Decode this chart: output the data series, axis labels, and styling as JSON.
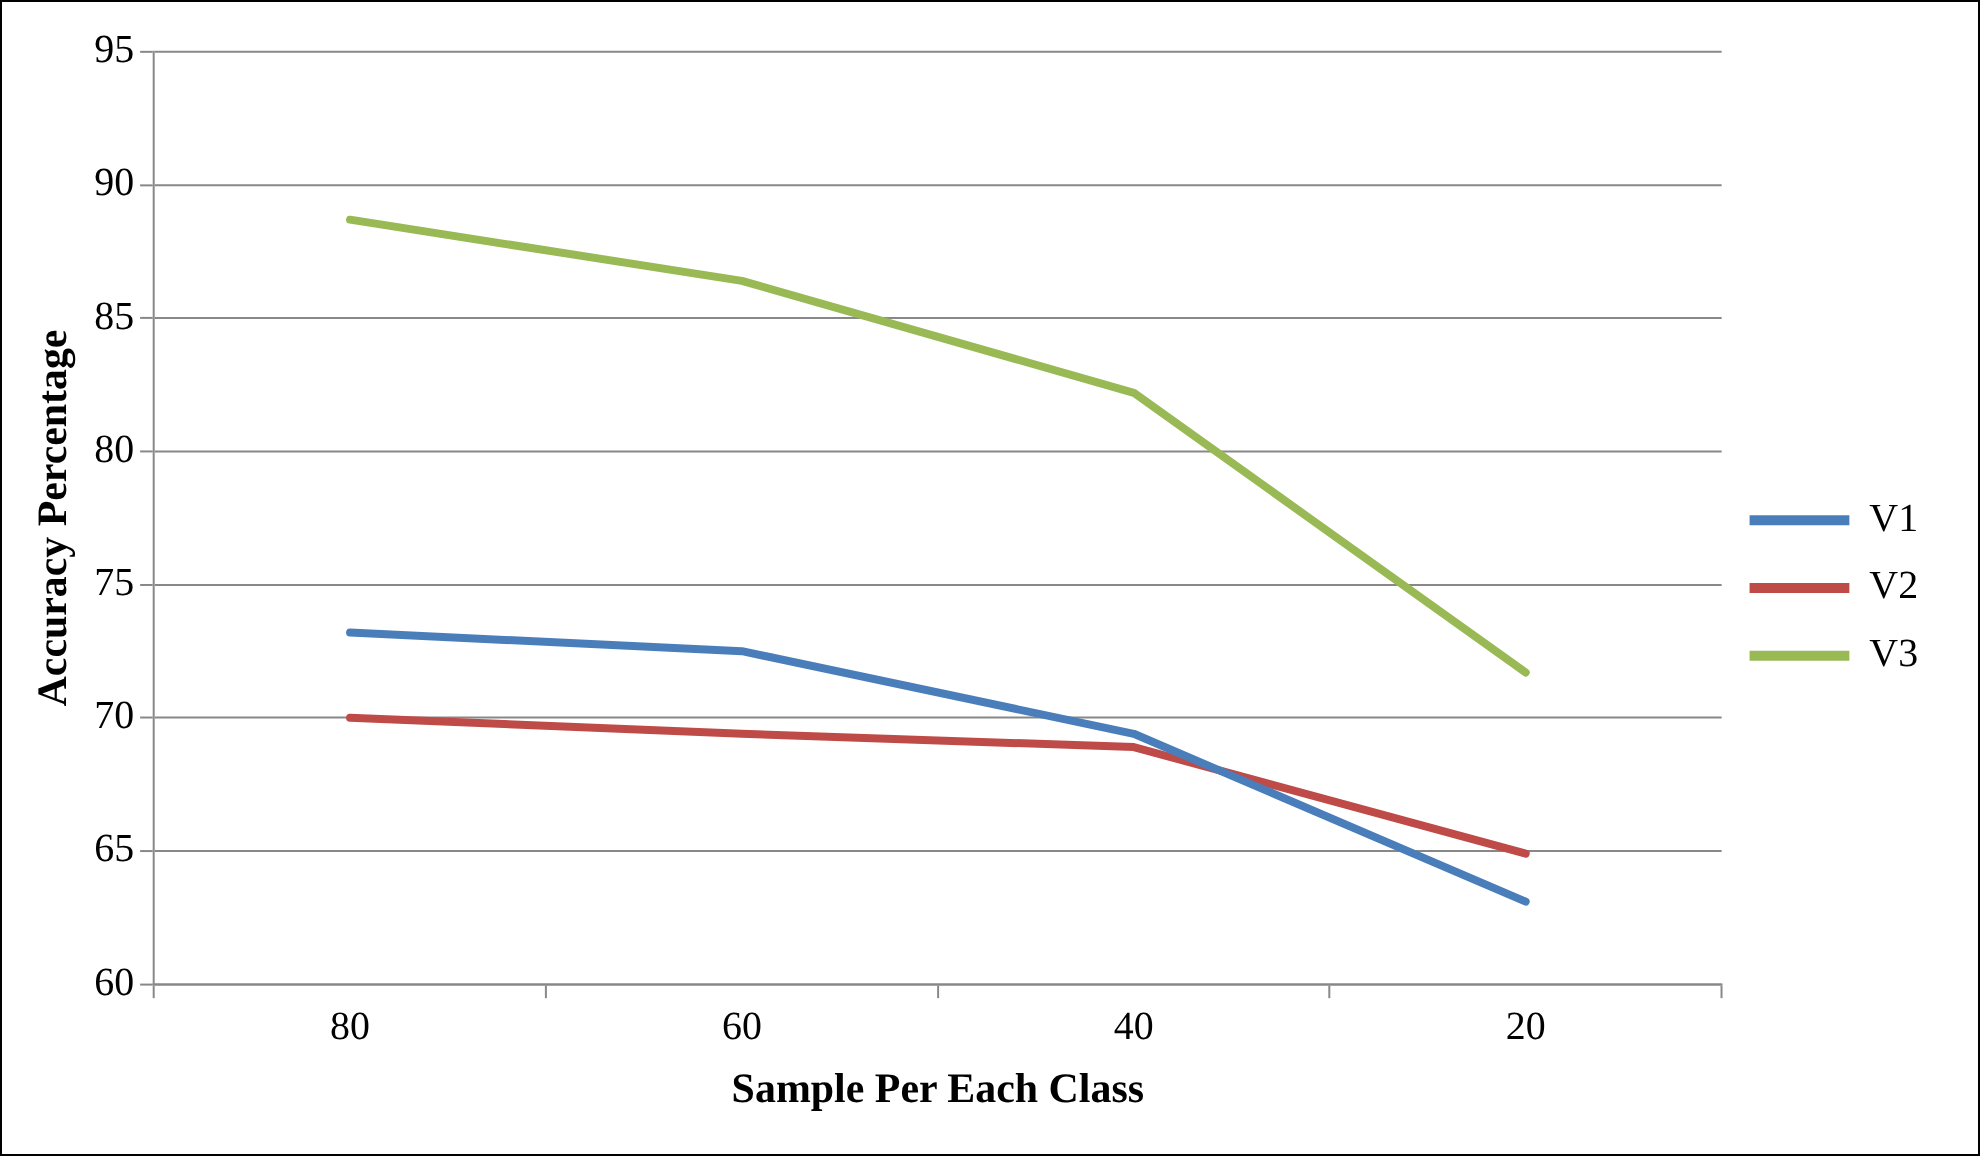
{
  "chart_data": {
    "type": "line",
    "xlabel": "Sample Per Each Class",
    "ylabel": "Accuracy Percentage",
    "categories": [
      "80",
      "60",
      "40",
      "20"
    ],
    "series": [
      {
        "name": "V1",
        "color": "#4a7ebb",
        "values": [
          73.2,
          72.5,
          69.4,
          63.1
        ]
      },
      {
        "name": "V2",
        "color": "#be4b48",
        "values": [
          70.0,
          69.4,
          68.9,
          64.9
        ]
      },
      {
        "name": "V3",
        "color": "#98b954",
        "values": [
          88.7,
          86.4,
          82.2,
          71.7
        ]
      }
    ],
    "ylim": [
      60,
      95
    ],
    "yticks": [
      60,
      65,
      70,
      75,
      80,
      85,
      90,
      95
    ],
    "grid": "y",
    "legend": "right",
    "marker": "none",
    "line_style": "solid"
  }
}
